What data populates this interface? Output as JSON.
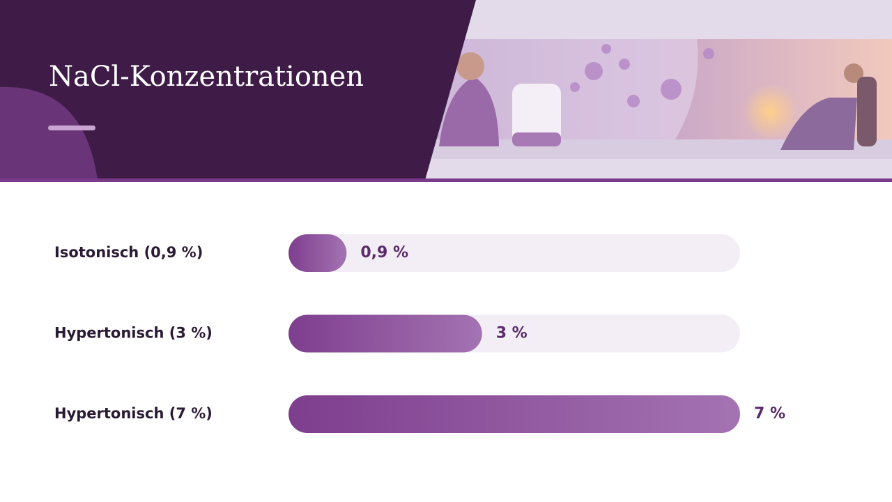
{
  "chart_data": {
    "type": "bar",
    "orientation": "horizontal",
    "title": "NaCl-Konzentrationen",
    "categories": [
      "Isotonisch (0,9 %)",
      "Hypertonisch (3 %)",
      "Hypertonisch (7 %)"
    ],
    "values": [
      0.9,
      3,
      7
    ],
    "value_labels": [
      "0,9 %",
      "3 %",
      "7 %"
    ],
    "color": "#8a4a9c",
    "xlim": [
      0,
      7
    ]
  }
}
